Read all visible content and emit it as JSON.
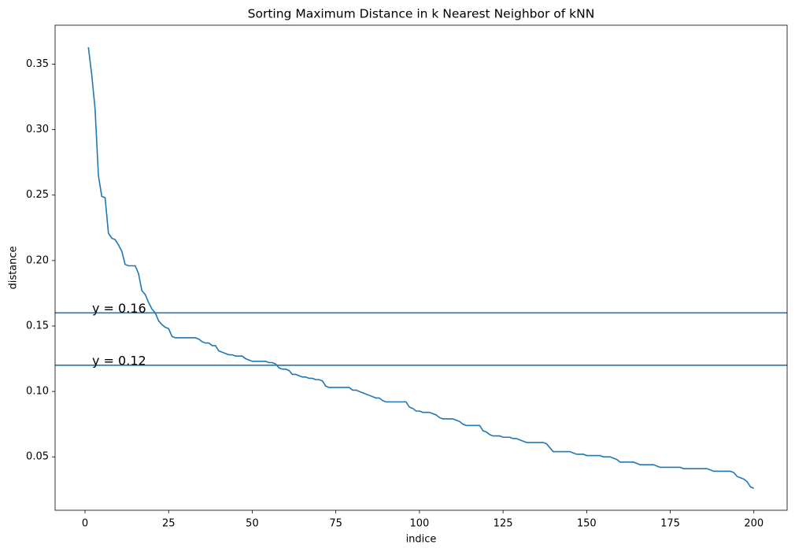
{
  "chart_data": {
    "type": "line",
    "title": "Sorting Maximum Distance in k Nearest Neighbor of kNN",
    "xlabel": "indice",
    "ylabel": "distance",
    "color": "#1f77b4",
    "x": [
      1,
      2,
      3,
      4,
      5,
      6,
      7,
      8,
      9,
      10,
      11,
      12,
      13,
      14,
      15,
      16,
      17,
      18,
      19,
      20,
      21,
      22,
      23,
      24,
      25,
      26,
      27,
      28,
      29,
      30,
      31,
      32,
      33,
      34,
      35,
      36,
      37,
      38,
      39,
      40,
      41,
      42,
      43,
      44,
      45,
      46,
      47,
      48,
      49,
      50,
      51,
      52,
      53,
      54,
      55,
      56,
      57,
      58,
      59,
      60,
      61,
      62,
      63,
      64,
      65,
      66,
      67,
      68,
      69,
      70,
      71,
      72,
      73,
      74,
      75,
      76,
      77,
      78,
      79,
      80,
      81,
      82,
      83,
      84,
      85,
      86,
      87,
      88,
      89,
      90,
      91,
      92,
      93,
      94,
      95,
      96,
      97,
      98,
      99,
      100,
      101,
      102,
      103,
      104,
      105,
      106,
      107,
      108,
      109,
      110,
      111,
      112,
      113,
      114,
      115,
      116,
      117,
      118,
      119,
      120,
      121,
      122,
      123,
      124,
      125,
      126,
      127,
      128,
      129,
      130,
      131,
      132,
      133,
      134,
      135,
      136,
      137,
      138,
      139,
      140,
      141,
      142,
      143,
      144,
      145,
      146,
      147,
      148,
      149,
      150,
      151,
      152,
      153,
      154,
      155,
      156,
      157,
      158,
      159,
      160,
      161,
      162,
      163,
      164,
      165,
      166,
      167,
      168,
      169,
      170,
      171,
      172,
      173,
      174,
      175,
      176,
      177,
      178,
      179,
      180,
      181,
      182,
      183,
      184,
      185,
      186,
      187,
      188,
      189,
      190,
      191,
      192,
      193,
      194,
      195,
      196,
      197,
      198,
      199,
      200
    ],
    "values": [
      0.363,
      0.342,
      0.316,
      0.265,
      0.249,
      0.248,
      0.221,
      0.217,
      0.216,
      0.212,
      0.207,
      0.197,
      0.196,
      0.196,
      0.196,
      0.19,
      0.177,
      0.174,
      0.168,
      0.163,
      0.16,
      0.154,
      0.151,
      0.149,
      0.148,
      0.142,
      0.141,
      0.141,
      0.141,
      0.141,
      0.141,
      0.141,
      0.141,
      0.14,
      0.138,
      0.137,
      0.137,
      0.135,
      0.135,
      0.131,
      0.13,
      0.129,
      0.128,
      0.128,
      0.127,
      0.127,
      0.127,
      0.125,
      0.124,
      0.123,
      0.123,
      0.123,
      0.123,
      0.123,
      0.122,
      0.122,
      0.121,
      0.118,
      0.117,
      0.117,
      0.116,
      0.113,
      0.113,
      0.112,
      0.111,
      0.111,
      0.11,
      0.11,
      0.109,
      0.109,
      0.108,
      0.104,
      0.103,
      0.103,
      0.103,
      0.103,
      0.103,
      0.103,
      0.103,
      0.101,
      0.101,
      0.1,
      0.099,
      0.098,
      0.097,
      0.096,
      0.095,
      0.095,
      0.093,
      0.092,
      0.092,
      0.092,
      0.092,
      0.092,
      0.092,
      0.092,
      0.088,
      0.087,
      0.085,
      0.085,
      0.084,
      0.084,
      0.084,
      0.083,
      0.082,
      0.08,
      0.079,
      0.079,
      0.079,
      0.079,
      0.078,
      0.077,
      0.075,
      0.074,
      0.074,
      0.074,
      0.074,
      0.074,
      0.07,
      0.069,
      0.067,
      0.066,
      0.066,
      0.066,
      0.065,
      0.065,
      0.065,
      0.064,
      0.064,
      0.063,
      0.062,
      0.061,
      0.061,
      0.061,
      0.061,
      0.061,
      0.061,
      0.06,
      0.057,
      0.054,
      0.054,
      0.054,
      0.054,
      0.054,
      0.054,
      0.053,
      0.052,
      0.052,
      0.052,
      0.051,
      0.051,
      0.051,
      0.051,
      0.051,
      0.05,
      0.05,
      0.05,
      0.049,
      0.048,
      0.046,
      0.046,
      0.046,
      0.046,
      0.046,
      0.045,
      0.044,
      0.044,
      0.044,
      0.044,
      0.044,
      0.043,
      0.042,
      0.042,
      0.042,
      0.042,
      0.042,
      0.042,
      0.042,
      0.041,
      0.041,
      0.041,
      0.041,
      0.041,
      0.041,
      0.041,
      0.041,
      0.04,
      0.039,
      0.039,
      0.039,
      0.039,
      0.039,
      0.039,
      0.038,
      0.035,
      0.034,
      0.033,
      0.031,
      0.027,
      0.026
    ],
    "hlines": [
      {
        "value": 0.16,
        "label": "y = 0.16"
      },
      {
        "value": 0.12,
        "label": "y = 0.12"
      }
    ],
    "xlim": [
      -8.95,
      209.95
    ],
    "xticks": [
      0,
      25,
      50,
      75,
      100,
      125,
      150,
      175,
      200
    ],
    "ylim": [
      0.0092,
      0.3798
    ],
    "yticks": [
      0.05,
      {
        "value": 0.1,
        "label": "0.10"
      },
      0.15,
      {
        "value": 0.2,
        "label": "0.20"
      },
      0.25,
      {
        "value": 0.3,
        "label": "0.30"
      },
      0.35
    ],
    "grid": false
  }
}
